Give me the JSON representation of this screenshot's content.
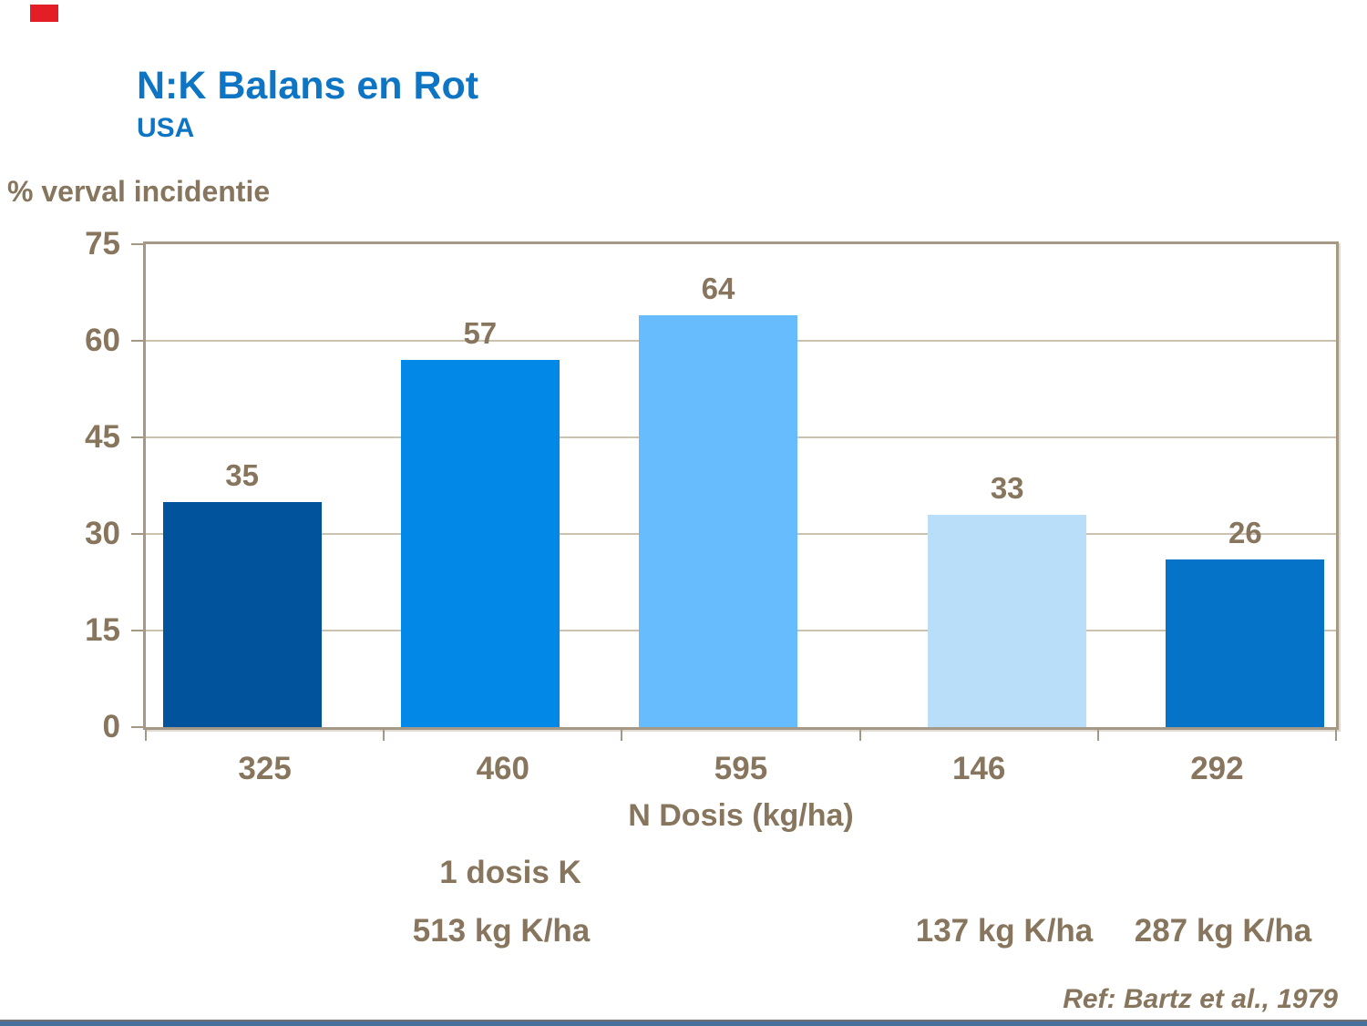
{
  "slide": {
    "title": "N:K Balans en Rot",
    "subtitle": "USA",
    "reference": "Ref: Bartz et al., 1979",
    "colors": {
      "title_blue": "#0E75C4",
      "text_brown": "#87765D",
      "axis_frame_tan": "#A59884",
      "gridline_tan": "#CDC2B0",
      "logo_red": "#E31E26",
      "footer_line_gray": "#6E6F72",
      "footer_bar_blue": "#46719C"
    }
  },
  "chart_data": {
    "type": "bar",
    "title": "N:K Balans en Rot",
    "subtitle": "USA",
    "xlabel": "N Dosis (kg/ha)",
    "ylabel": "% verval incidentie",
    "ylim": [
      0,
      75
    ],
    "y_ticks": [
      0,
      15,
      30,
      45,
      60,
      75
    ],
    "grid": true,
    "legend_position": "none",
    "categories": [
      "325",
      "460",
      "595",
      "146",
      "292"
    ],
    "values": [
      35,
      57,
      64,
      33,
      26
    ],
    "bar_colors": [
      "#01549B",
      "#0289E8",
      "#67BCFD",
      "#B9DEFA",
      "#0473C8"
    ],
    "bar_k_dose_groups": [
      "513 kg K/ha",
      "513 kg K/ha",
      "513 kg K/ha",
      "137 kg K/ha",
      "287 kg K/ha"
    ],
    "annotations": {
      "group_label": "1 dosis K",
      "dose_a": "513 kg K/ha",
      "dose_b": "137 kg K/ha",
      "dose_c": "287 kg K/ha"
    }
  }
}
